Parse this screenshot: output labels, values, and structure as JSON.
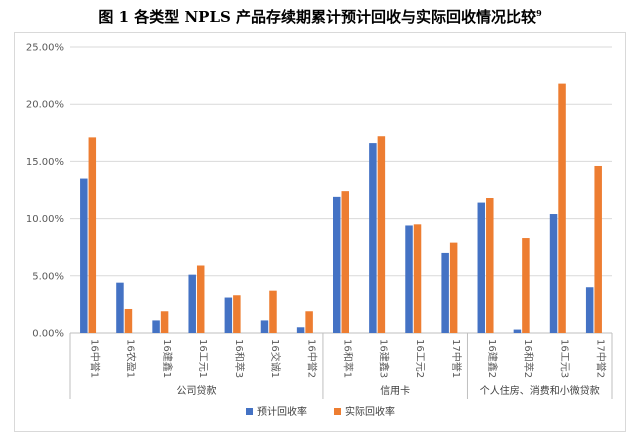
{
  "chart_data": {
    "type": "bar",
    "title": "图 1  各类型 NPLS 产品存续期累计预计回收与实际回收情况比较",
    "title_sup": "9",
    "xlabel": "",
    "ylabel": "",
    "ylim": [
      0,
      25
    ],
    "yticks": [
      0,
      5,
      10,
      15,
      20,
      25
    ],
    "ytick_labels": [
      "0.00%",
      "5.00%",
      "10.00%",
      "15.00%",
      "20.00%",
      "25.00%"
    ],
    "grid": true,
    "legend_position": "bottom",
    "categories": [
      "16中誉1",
      "16农盈1",
      "16建鑫1",
      "16工元1",
      "16和萃3",
      "16交诚1",
      "16中誉2",
      "16和萃1",
      "16建鑫3",
      "16工元2",
      "17中誉1",
      "16建鑫2",
      "16和萃2",
      "16工元3",
      "17中誉2"
    ],
    "groups": [
      {
        "name": "公司贷款",
        "count": 7
      },
      {
        "name": "信用卡",
        "count": 4
      },
      {
        "name": "个人住房、消费和小微贷款",
        "count": 4
      }
    ],
    "series": [
      {
        "name": "预计回收率",
        "color": "#4472C4",
        "values": [
          13.5,
          4.4,
          1.1,
          5.1,
          3.1,
          1.1,
          0.5,
          11.9,
          16.6,
          9.4,
          7.0,
          11.4,
          0.3,
          10.4,
          4.0
        ]
      },
      {
        "name": "实际回收率",
        "color": "#ED7D31",
        "values": [
          17.1,
          2.1,
          1.9,
          5.9,
          3.3,
          3.7,
          1.9,
          12.4,
          17.2,
          9.5,
          7.9,
          11.8,
          8.3,
          21.8,
          14.6
        ]
      }
    ]
  }
}
